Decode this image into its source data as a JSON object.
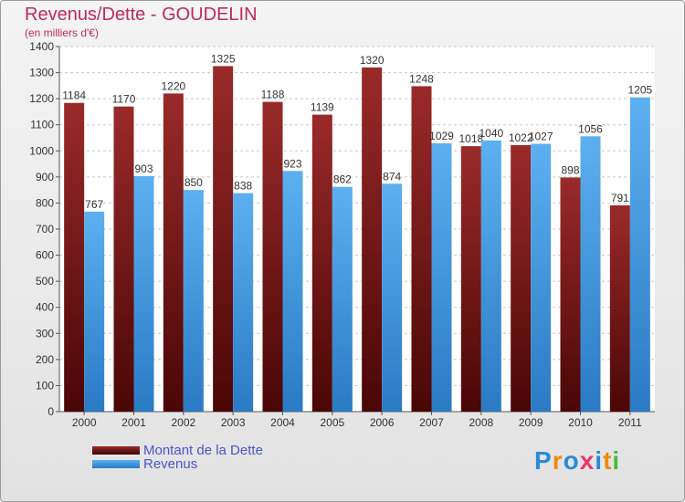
{
  "title": "Revenus/Dette - GOUDELIN",
  "subtitle": "(en milliers d'€)",
  "logo": [
    "P",
    "r",
    "o",
    "x",
    "i",
    "t",
    "i"
  ],
  "colors": {
    "dette": "#7a1414",
    "revenus": "#3a9ae6",
    "title": "#c02a5a",
    "legend_text": "#4a55c8"
  },
  "chart_data": {
    "type": "bar",
    "categories": [
      "2000",
      "2001",
      "2002",
      "2003",
      "2004",
      "2005",
      "2006",
      "2007",
      "2008",
      "2009",
      "2010",
      "2011"
    ],
    "series": [
      {
        "name": "Montant de la Dette",
        "values": [
          1184,
          1170,
          1220,
          1325,
          1188,
          1139,
          1320,
          1248,
          1018,
          1022,
          898,
          791
        ]
      },
      {
        "name": "Revenus",
        "values": [
          767,
          903,
          850,
          838,
          923,
          862,
          874,
          1029,
          1040,
          1027,
          1056,
          1205
        ]
      }
    ],
    "ylim": [
      0,
      1400
    ],
    "yticks": [
      0,
      100,
      200,
      300,
      400,
      500,
      600,
      700,
      800,
      900,
      1000,
      1100,
      1200,
      1300,
      1400
    ],
    "grid": true,
    "legend": "bottom-left"
  }
}
